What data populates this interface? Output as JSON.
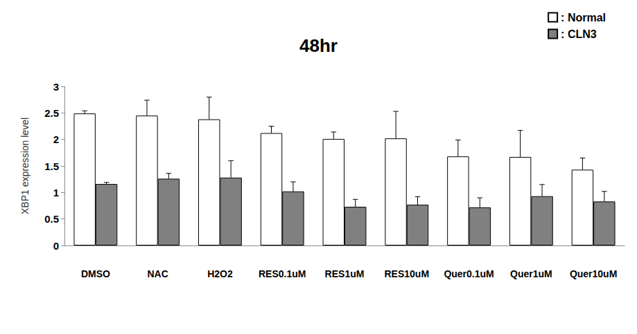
{
  "chart_data": {
    "type": "bar",
    "title": "48hr",
    "y_label": "XBP1 expression level",
    "categories": [
      "DMSO",
      "NAC",
      "H2O2",
      "RES0.1uM",
      "RES1uM",
      "RES10uM",
      "Quer0.1uM",
      "Quer1uM",
      "Quer10uM"
    ],
    "series": [
      {
        "name": ": Normal",
        "color": "#ffffff",
        "values": [
          2.49,
          2.45,
          2.38,
          2.12,
          2.01,
          2.02,
          1.68,
          1.67,
          1.43
        ],
        "errors": [
          0.05,
          0.29,
          0.42,
          0.13,
          0.13,
          0.51,
          0.31,
          0.5,
          0.22
        ]
      },
      {
        "name": ": CLN3",
        "color": "#808080",
        "values": [
          1.16,
          1.26,
          1.28,
          1.02,
          0.73,
          0.77,
          0.72,
          0.93,
          0.83
        ],
        "errors": [
          0.03,
          0.1,
          0.32,
          0.18,
          0.14,
          0.15,
          0.18,
          0.22,
          0.19
        ]
      }
    ],
    "ylim": [
      0,
      3
    ],
    "yticks": [
      0,
      0.5,
      1,
      1.5,
      2,
      2.5,
      3
    ],
    "grid": false,
    "legend": "top-right"
  }
}
